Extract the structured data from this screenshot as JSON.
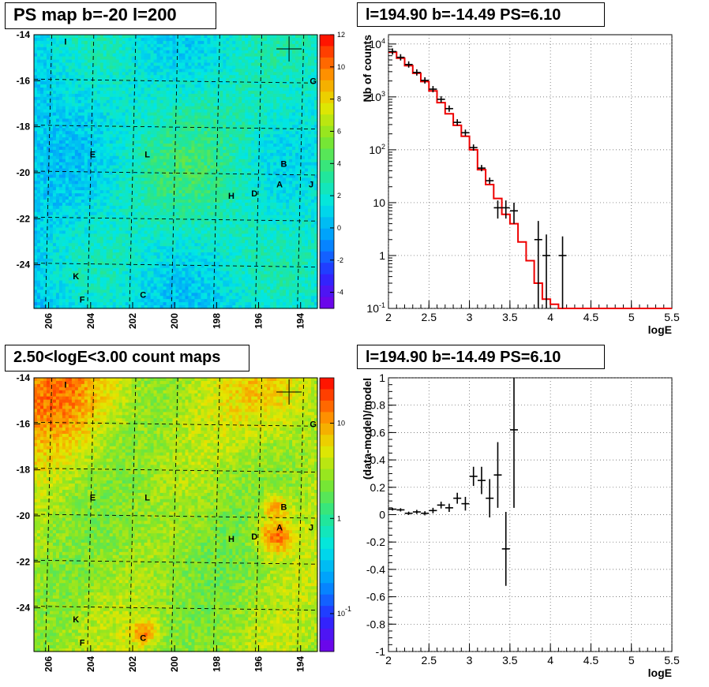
{
  "panels": {
    "map_top_title": "PS map b=-20 l=200",
    "spec_top_title": "l=194.90 b=-14.49 PS=6.10",
    "map_bottom_title": "2.50<logE<3.00 count maps",
    "spec_bottom_title": "l=194.90 b=-14.49 PS=6.10"
  },
  "chart_data": [
    {
      "type": "heatmap",
      "title": "PS map b=-20 l=200",
      "x_ticks": [
        "206",
        "204",
        "202",
        "200",
        "198",
        "196",
        "194"
      ],
      "y_ticks": [
        "-14",
        "-16",
        "-18",
        "-20",
        "-22",
        "-24"
      ],
      "xlim": [
        206.7,
        193.2
      ],
      "ylim": [
        -25.9,
        -14
      ],
      "colorbar_ticks": [
        "12",
        "10",
        "8",
        "6",
        "4",
        "2",
        "0",
        "-2",
        "-4"
      ],
      "colorbar_range": [
        -5,
        12
      ],
      "source_labels": [
        {
          "label": "I",
          "l": 205.2,
          "b": -14.3
        },
        {
          "label": "G",
          "l": 193.4,
          "b": -16.0
        },
        {
          "label": "E",
          "l": 203.9,
          "b": -19.2
        },
        {
          "label": "L",
          "l": 201.3,
          "b": -19.2
        },
        {
          "label": "B",
          "l": 194.8,
          "b": -19.6
        },
        {
          "label": "A",
          "l": 195.0,
          "b": -20.5
        },
        {
          "label": "J",
          "l": 193.5,
          "b": -20.5
        },
        {
          "label": "H",
          "l": 197.3,
          "b": -21.0
        },
        {
          "label": "D",
          "l": 196.2,
          "b": -20.9
        },
        {
          "label": "K",
          "l": 204.7,
          "b": -24.5
        },
        {
          "label": "F",
          "l": 204.4,
          "b": -25.5
        },
        {
          "label": "C",
          "l": 201.5,
          "b": -25.3
        }
      ]
    },
    {
      "type": "line",
      "title": "l=194.90 b=-14.49 PS=6.10",
      "xlabel": "logE",
      "ylabel": "Nb of counts",
      "xlim": [
        2,
        5.5
      ],
      "ylim": [
        0.1,
        15000
      ],
      "y_scale": "log",
      "x_ticks": [
        "2",
        "2.5",
        "3",
        "3.5",
        "4",
        "4.5",
        "5",
        "5.5"
      ],
      "y_ticks": [
        "10^4",
        "10^3",
        "10^2",
        "10",
        "1",
        "10^-1"
      ],
      "grid": true,
      "series": [
        {
          "type": "points",
          "x": [
            2.05,
            2.15,
            2.25,
            2.35,
            2.45,
            2.55,
            2.65,
            2.75,
            2.85,
            2.95,
            3.05,
            3.15,
            3.25,
            3.35,
            3.45,
            3.55,
            3.65,
            3.75,
            3.85,
            3.95,
            4.05,
            4.15
          ],
          "y": [
            7200,
            5600,
            4100,
            2900,
            2050,
            1400,
            900,
            600,
            330,
            210,
            110,
            45,
            26,
            8,
            8,
            7,
            0.1,
            0.1,
            2,
            1,
            0.1,
            1
          ],
          "err_low": [
            0,
            0,
            0,
            0,
            0,
            0,
            0,
            0,
            0,
            0,
            0,
            0,
            0,
            3,
            3,
            3,
            0,
            0,
            1.9,
            0.95,
            0,
            0.95
          ],
          "err_high": [
            0,
            0,
            0,
            0,
            0,
            0,
            0,
            0,
            0,
            0,
            0,
            0,
            0,
            3,
            3,
            3,
            0,
            0,
            2.5,
            1.5,
            0,
            1.3
          ]
        },
        {
          "type": "step",
          "x_edges": [
            2.0,
            2.1,
            2.2,
            2.3,
            2.4,
            2.5,
            2.6,
            2.7,
            2.8,
            2.9,
            3.0,
            3.1,
            3.2,
            3.3,
            3.4,
            3.5,
            3.6,
            3.7,
            3.8,
            3.9,
            4.0,
            4.1,
            5.5
          ],
          "y": [
            7000,
            5400,
            3900,
            2800,
            1950,
            1300,
            780,
            480,
            290,
            180,
            100,
            42,
            22,
            12,
            6,
            4,
            1.8,
            0.8,
            0.3,
            0.15,
            0.12,
            0.1
          ],
          "color": "#ee0000"
        }
      ]
    },
    {
      "type": "heatmap",
      "title": "2.50<logE<3.00 count maps",
      "x_ticks": [
        "206",
        "204",
        "202",
        "200",
        "198",
        "196",
        "194"
      ],
      "y_ticks": [
        "-14",
        "-16",
        "-18",
        "-20",
        "-22",
        "-24"
      ],
      "xlim": [
        206.7,
        193.2
      ],
      "ylim": [
        -25.9,
        -14
      ],
      "colorbar_ticks": [
        "10",
        "1",
        "10^-1"
      ],
      "colorbar_scale": "log",
      "source_labels": [
        {
          "label": "I",
          "l": 205.2,
          "b": -14.3
        },
        {
          "label": "G",
          "l": 193.4,
          "b": -16.0
        },
        {
          "label": "E",
          "l": 203.9,
          "b": -19.2
        },
        {
          "label": "L",
          "l": 201.3,
          "b": -19.2
        },
        {
          "label": "B",
          "l": 194.8,
          "b": -19.6
        },
        {
          "label": "A",
          "l": 195.0,
          "b": -20.5
        },
        {
          "label": "J",
          "l": 193.5,
          "b": -20.5
        },
        {
          "label": "H",
          "l": 197.3,
          "b": -21.0
        },
        {
          "label": "D",
          "l": 196.2,
          "b": -20.9
        },
        {
          "label": "K",
          "l": 204.7,
          "b": -24.5
        },
        {
          "label": "F",
          "l": 204.4,
          "b": -25.5
        },
        {
          "label": "C",
          "l": 201.5,
          "b": -25.3
        }
      ]
    },
    {
      "type": "scatter",
      "title": "l=194.90 b=-14.49 PS=6.10",
      "xlabel": "logE",
      "ylabel": "(data-model)/model",
      "xlim": [
        2,
        5.5
      ],
      "ylim": [
        -1,
        1
      ],
      "x_ticks": [
        "2",
        "2.5",
        "3",
        "3.5",
        "4",
        "4.5",
        "5",
        "5.5"
      ],
      "y_ticks": [
        "1",
        "0.8",
        "0.6",
        "0.4",
        "0.2",
        "0",
        "-0.2",
        "-0.4",
        "-0.6",
        "-0.8",
        "-1"
      ],
      "grid": true,
      "series": [
        {
          "x": [
            2.05,
            2.15,
            2.25,
            2.35,
            2.45,
            2.55,
            2.65,
            2.75,
            2.85,
            2.95,
            3.05,
            3.15,
            3.25,
            3.35,
            3.45,
            3.55
          ],
          "y": [
            0.04,
            0.035,
            0.01,
            0.02,
            0.01,
            0.03,
            0.07,
            0.05,
            0.12,
            0.08,
            0.28,
            0.25,
            0.12,
            0.29,
            -0.25,
            0.62
          ],
          "err": [
            0.01,
            0.012,
            0.012,
            0.015,
            0.015,
            0.02,
            0.025,
            0.03,
            0.04,
            0.05,
            0.07,
            0.1,
            0.14,
            0.24,
            0.27,
            0.57
          ]
        }
      ]
    }
  ]
}
